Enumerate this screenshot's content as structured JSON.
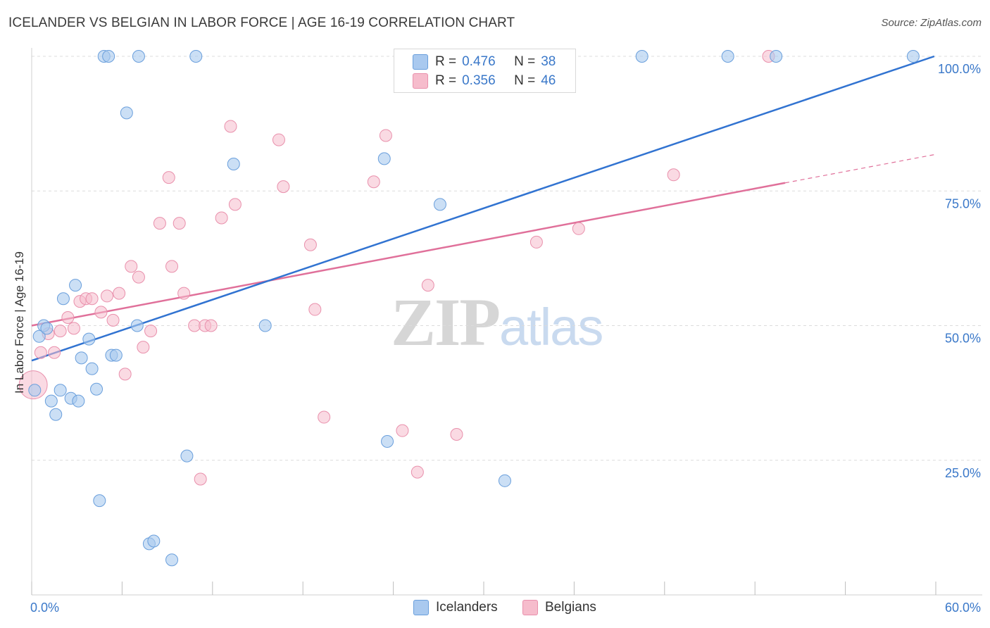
{
  "title": "ICELANDER VS BELGIAN IN LABOR FORCE | AGE 16-19 CORRELATION CHART",
  "source": "Source: ZipAtlas.com",
  "watermark": {
    "zip": "ZIP",
    "atlas": "atlas"
  },
  "colors": {
    "blue_fill": "#a9c9ef",
    "blue_stroke": "#6a9fdc",
    "blue_line": "#3173d1",
    "pink_fill": "#f6bccc",
    "pink_stroke": "#e990ac",
    "pink_line": "#e0709a",
    "tick_label": "#3a78c9",
    "grid": "#dcdcdc"
  },
  "legend_top": [
    {
      "r_label": "R =",
      "r_value": "0.476",
      "n_label": "N =",
      "n_value": "38"
    },
    {
      "r_label": "R =",
      "r_value": "0.356",
      "n_label": "N =",
      "n_value": "46"
    }
  ],
  "legend_bottom": [
    "Icelanders",
    "Belgians"
  ],
  "chart_data": {
    "type": "scatter",
    "title": "ICELANDER VS BELGIAN IN LABOR FORCE | AGE 16-19 CORRELATION CHART",
    "xlabel": "",
    "ylabel": "In Labor Force | Age 16-19",
    "xlim": [
      0,
      60
    ],
    "ylim": [
      0,
      100
    ],
    "x_tick_labels": [
      "0.0%",
      "60.0%"
    ],
    "y_ticks": [
      25,
      50,
      75,
      100
    ],
    "y_tick_labels": [
      "25.0%",
      "50.0%",
      "75.0%",
      "100.0%"
    ],
    "grid": true,
    "series": [
      {
        "name": "Icelanders",
        "r": 0.476,
        "n": 38,
        "trend": {
          "x": [
            0,
            59.9
          ],
          "y": [
            43.5,
            100.0
          ]
        },
        "points": [
          {
            "x": 0.2,
            "y": 38.0,
            "s": 1
          },
          {
            "x": 0.5,
            "y": 48.0,
            "s": 1
          },
          {
            "x": 0.8,
            "y": 50.0,
            "s": 1
          },
          {
            "x": 1.0,
            "y": 49.5,
            "s": 1
          },
          {
            "x": 1.3,
            "y": 36.0,
            "s": 1
          },
          {
            "x": 1.6,
            "y": 33.5,
            "s": 1
          },
          {
            "x": 1.9,
            "y": 38.0,
            "s": 1
          },
          {
            "x": 2.1,
            "y": 55.0,
            "s": 1
          },
          {
            "x": 2.6,
            "y": 36.5,
            "s": 1
          },
          {
            "x": 2.9,
            "y": 57.5,
            "s": 1
          },
          {
            "x": 3.1,
            "y": 36.0,
            "s": 1
          },
          {
            "x": 3.3,
            "y": 44.0,
            "s": 1
          },
          {
            "x": 3.8,
            "y": 47.5,
            "s": 1
          },
          {
            "x": 4.0,
            "y": 42.0,
            "s": 1
          },
          {
            "x": 4.3,
            "y": 38.2,
            "s": 1
          },
          {
            "x": 4.5,
            "y": 17.5,
            "s": 1
          },
          {
            "x": 4.8,
            "y": 100,
            "s": 1
          },
          {
            "x": 5.1,
            "y": 100,
            "s": 1
          },
          {
            "x": 5.3,
            "y": 44.5,
            "s": 1
          },
          {
            "x": 5.6,
            "y": 44.5,
            "s": 1
          },
          {
            "x": 6.3,
            "y": 89.5,
            "s": 1
          },
          {
            "x": 7.0,
            "y": 50.0,
            "s": 1
          },
          {
            "x": 7.1,
            "y": 100,
            "s": 1
          },
          {
            "x": 7.8,
            "y": 9.5,
            "s": 1
          },
          {
            "x": 8.1,
            "y": 10.0,
            "s": 1
          },
          {
            "x": 9.3,
            "y": 6.5,
            "s": 1
          },
          {
            "x": 10.3,
            "y": 25.8,
            "s": 1
          },
          {
            "x": 10.9,
            "y": 100,
            "s": 1
          },
          {
            "x": 13.4,
            "y": 80.0,
            "s": 1
          },
          {
            "x": 15.5,
            "y": 50.0,
            "s": 1
          },
          {
            "x": 23.4,
            "y": 81.0,
            "s": 1
          },
          {
            "x": 23.6,
            "y": 28.5,
            "s": 1
          },
          {
            "x": 27.1,
            "y": 72.5,
            "s": 1
          },
          {
            "x": 31.4,
            "y": 21.2,
            "s": 1
          },
          {
            "x": 40.5,
            "y": 100,
            "s": 1
          },
          {
            "x": 46.2,
            "y": 100,
            "s": 1
          },
          {
            "x": 49.4,
            "y": 100,
            "s": 1
          },
          {
            "x": 58.5,
            "y": 100,
            "s": 1
          }
        ]
      },
      {
        "name": "Belgians",
        "r": 0.356,
        "n": 46,
        "trend": {
          "x": [
            0,
            50.0
          ],
          "y": [
            50.0,
            76.5
          ]
        },
        "trend_dashed": {
          "x": [
            50.0,
            60.0
          ],
          "y": [
            76.5,
            81.8
          ]
        },
        "points": [
          {
            "x": 0.1,
            "y": 39.0,
            "s": 2
          },
          {
            "x": 0.6,
            "y": 45.0,
            "s": 1
          },
          {
            "x": 1.1,
            "y": 48.5,
            "s": 1
          },
          {
            "x": 1.5,
            "y": 45.0,
            "s": 1
          },
          {
            "x": 1.9,
            "y": 49.0,
            "s": 1
          },
          {
            "x": 2.4,
            "y": 51.5,
            "s": 1
          },
          {
            "x": 2.8,
            "y": 49.5,
            "s": 1
          },
          {
            "x": 3.2,
            "y": 54.5,
            "s": 1
          },
          {
            "x": 3.6,
            "y": 55.0,
            "s": 1
          },
          {
            "x": 4.0,
            "y": 55.0,
            "s": 1
          },
          {
            "x": 4.6,
            "y": 52.5,
            "s": 1
          },
          {
            "x": 5.0,
            "y": 55.5,
            "s": 1
          },
          {
            "x": 5.4,
            "y": 51.0,
            "s": 1
          },
          {
            "x": 5.8,
            "y": 56.0,
            "s": 1
          },
          {
            "x": 6.2,
            "y": 41.0,
            "s": 1
          },
          {
            "x": 6.6,
            "y": 61.0,
            "s": 1
          },
          {
            "x": 7.1,
            "y": 59.0,
            "s": 1
          },
          {
            "x": 7.4,
            "y": 46.0,
            "s": 1
          },
          {
            "x": 7.9,
            "y": 49.0,
            "s": 1
          },
          {
            "x": 8.5,
            "y": 69.0,
            "s": 1
          },
          {
            "x": 9.1,
            "y": 77.5,
            "s": 1
          },
          {
            "x": 9.3,
            "y": 61.0,
            "s": 1
          },
          {
            "x": 9.8,
            "y": 69.0,
            "s": 1
          },
          {
            "x": 10.1,
            "y": 56.0,
            "s": 1
          },
          {
            "x": 10.8,
            "y": 50.0,
            "s": 1
          },
          {
            "x": 11.2,
            "y": 21.5,
            "s": 1
          },
          {
            "x": 11.5,
            "y": 50.0,
            "s": 1
          },
          {
            "x": 11.9,
            "y": 50.0,
            "s": 1
          },
          {
            "x": 12.6,
            "y": 70.0,
            "s": 1
          },
          {
            "x": 13.2,
            "y": 87.0,
            "s": 1
          },
          {
            "x": 13.5,
            "y": 72.5,
            "s": 1
          },
          {
            "x": 16.4,
            "y": 84.5,
            "s": 1
          },
          {
            "x": 16.7,
            "y": 75.8,
            "s": 1
          },
          {
            "x": 18.5,
            "y": 65.0,
            "s": 1
          },
          {
            "x": 18.8,
            "y": 53.0,
            "s": 1
          },
          {
            "x": 19.4,
            "y": 33.0,
            "s": 1
          },
          {
            "x": 22.7,
            "y": 76.7,
            "s": 1
          },
          {
            "x": 23.5,
            "y": 85.3,
            "s": 1
          },
          {
            "x": 24.6,
            "y": 30.5,
            "s": 1
          },
          {
            "x": 25.6,
            "y": 22.8,
            "s": 1
          },
          {
            "x": 26.3,
            "y": 57.5,
            "s": 1
          },
          {
            "x": 28.2,
            "y": 29.8,
            "s": 1
          },
          {
            "x": 33.5,
            "y": 65.5,
            "s": 1
          },
          {
            "x": 36.3,
            "y": 68.0,
            "s": 1
          },
          {
            "x": 42.6,
            "y": 78.0,
            "s": 1
          },
          {
            "x": 48.9,
            "y": 100,
            "s": 1
          }
        ]
      }
    ]
  }
}
